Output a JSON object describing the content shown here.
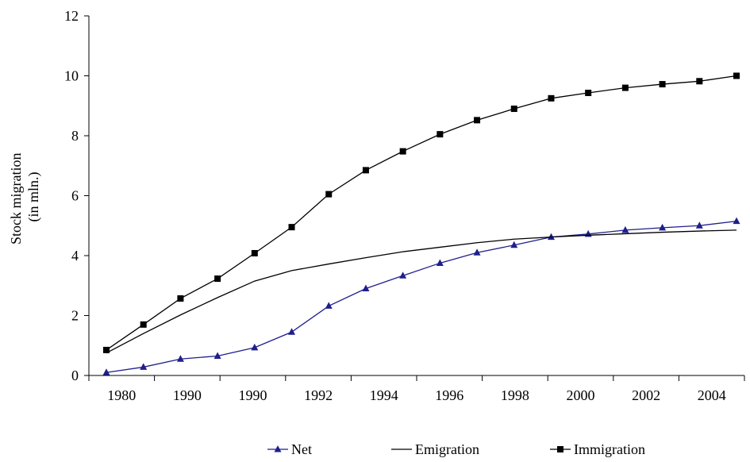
{
  "chart_data": {
    "type": "line",
    "title": "",
    "xlabel": "",
    "ylabel_lines": [
      "Stock migration",
      "(in mln.)"
    ],
    "ylim": [
      0,
      12
    ],
    "yticks": [
      0,
      2,
      4,
      6,
      8,
      10,
      12
    ],
    "x_tick_labels": [
      "1980",
      "1990",
      "1990",
      "1992",
      "1994",
      "1996",
      "1998",
      "2000",
      "2002",
      "2004"
    ],
    "grid": false,
    "legend_position": "bottom",
    "series": [
      {
        "name": "Net",
        "color": "#1f1f8c",
        "marker": "triangle",
        "values": [
          0.1,
          0.28,
          0.55,
          0.65,
          0.93,
          1.45,
          2.32,
          2.9,
          3.33,
          3.75,
          4.1,
          4.35,
          4.62,
          4.72,
          4.85,
          4.93,
          5.0,
          5.15
        ]
      },
      {
        "name": "Emigration",
        "color": "#000000",
        "marker": "none",
        "values": [
          0.75,
          1.4,
          2.02,
          2.6,
          3.15,
          3.5,
          3.72,
          3.93,
          4.13,
          4.28,
          4.43,
          4.55,
          4.62,
          4.68,
          4.73,
          4.78,
          4.82,
          4.85
        ]
      },
      {
        "name": "Immigration",
        "color": "#000000",
        "marker": "square",
        "values": [
          0.85,
          1.7,
          2.57,
          3.23,
          4.08,
          4.95,
          6.05,
          6.85,
          7.48,
          8.05,
          8.52,
          8.9,
          9.25,
          9.43,
          9.6,
          9.72,
          9.82,
          10.0
        ]
      }
    ]
  }
}
